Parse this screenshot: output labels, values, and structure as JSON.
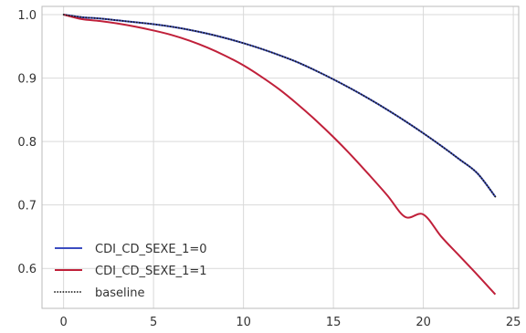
{
  "chart_data": {
    "type": "line",
    "title": "",
    "xlabel": "",
    "ylabel": "",
    "xlim": [
      -1.2,
      25.3
    ],
    "ylim": [
      0.537,
      1.013
    ],
    "grid": true,
    "legend_position": "lower-left",
    "x_ticks": [
      0,
      5,
      10,
      15,
      20,
      25
    ],
    "x_tick_labels": [
      "0",
      "5",
      "10",
      "15",
      "20",
      "25"
    ],
    "y_ticks": [
      0.6,
      0.7,
      0.8,
      0.9,
      1.0
    ],
    "y_tick_labels": [
      "0.6",
      "0.7",
      "0.8",
      "0.9",
      "1.0"
    ],
    "series": [
      {
        "name": "CDI_CD_SEXE_1=0",
        "color": "#3b4cc0",
        "style": "solid",
        "x": [
          0,
          1,
          2,
          3,
          4,
          5,
          6,
          7,
          8,
          9,
          10,
          11,
          12,
          13,
          14,
          15,
          16,
          17,
          18,
          19,
          20,
          21,
          22,
          23,
          24
        ],
        "y": [
          1.0,
          0.996,
          0.994,
          0.991,
          0.988,
          0.985,
          0.981,
          0.976,
          0.97,
          0.963,
          0.955,
          0.946,
          0.936,
          0.925,
          0.912,
          0.898,
          0.883,
          0.867,
          0.85,
          0.832,
          0.813,
          0.793,
          0.772,
          0.75,
          0.713
        ]
      },
      {
        "name": "CDI_CD_SEXE_1=1",
        "color": "#c0203a",
        "style": "solid",
        "x": [
          0,
          1,
          2,
          3,
          4,
          5,
          6,
          7,
          8,
          9,
          10,
          11,
          12,
          13,
          14,
          15,
          16,
          17,
          18,
          19,
          20,
          21,
          22,
          23,
          24
        ],
        "y": [
          1.0,
          0.993,
          0.99,
          0.986,
          0.981,
          0.975,
          0.968,
          0.959,
          0.948,
          0.935,
          0.92,
          0.902,
          0.882,
          0.859,
          0.834,
          0.807,
          0.778,
          0.747,
          0.715,
          0.681,
          0.685,
          0.65,
          0.62,
          0.59,
          0.559
        ]
      },
      {
        "name": "baseline",
        "color": "#1a1a1a",
        "style": "dotted",
        "x": [
          0,
          1,
          2,
          3,
          4,
          5,
          6,
          7,
          8,
          9,
          10,
          11,
          12,
          13,
          14,
          15,
          16,
          17,
          18,
          19,
          20,
          21,
          22,
          23,
          24
        ],
        "y": [
          1.0,
          0.996,
          0.994,
          0.991,
          0.988,
          0.985,
          0.981,
          0.976,
          0.97,
          0.963,
          0.955,
          0.946,
          0.936,
          0.925,
          0.912,
          0.898,
          0.883,
          0.867,
          0.85,
          0.832,
          0.813,
          0.793,
          0.772,
          0.75,
          0.713
        ]
      }
    ]
  }
}
